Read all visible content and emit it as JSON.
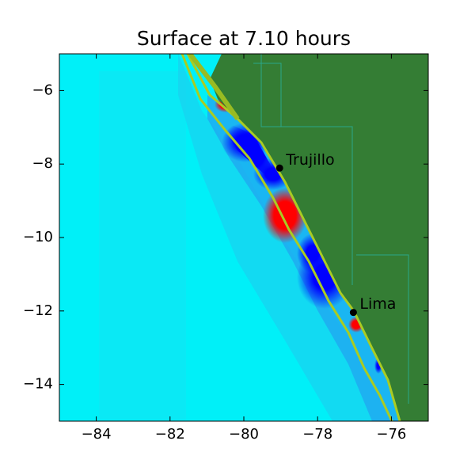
{
  "chart_data": {
    "type": "map",
    "title": "Surface at 7.10 hours",
    "xlim": [
      -85,
      -75
    ],
    "ylim": [
      -15,
      -5
    ],
    "xticks": [
      {
        "value": -84,
        "label": "−84"
      },
      {
        "value": -82,
        "label": "−82"
      },
      {
        "value": -80,
        "label": "−80"
      },
      {
        "value": -78,
        "label": "−78"
      },
      {
        "value": -76,
        "label": "−76"
      }
    ],
    "yticks": [
      {
        "value": -6,
        "label": "−6"
      },
      {
        "value": -8,
        "label": "−8"
      },
      {
        "value": -10,
        "label": "−10"
      },
      {
        "value": -12,
        "label": "−12"
      },
      {
        "value": -14,
        "label": "−14"
      }
    ],
    "points": [
      {
        "name": "Trujillo",
        "x": -79.03,
        "y": -8.11
      },
      {
        "name": "Lima",
        "x": -77.03,
        "y": -12.04
      }
    ],
    "point_color": "#000000"
  }
}
